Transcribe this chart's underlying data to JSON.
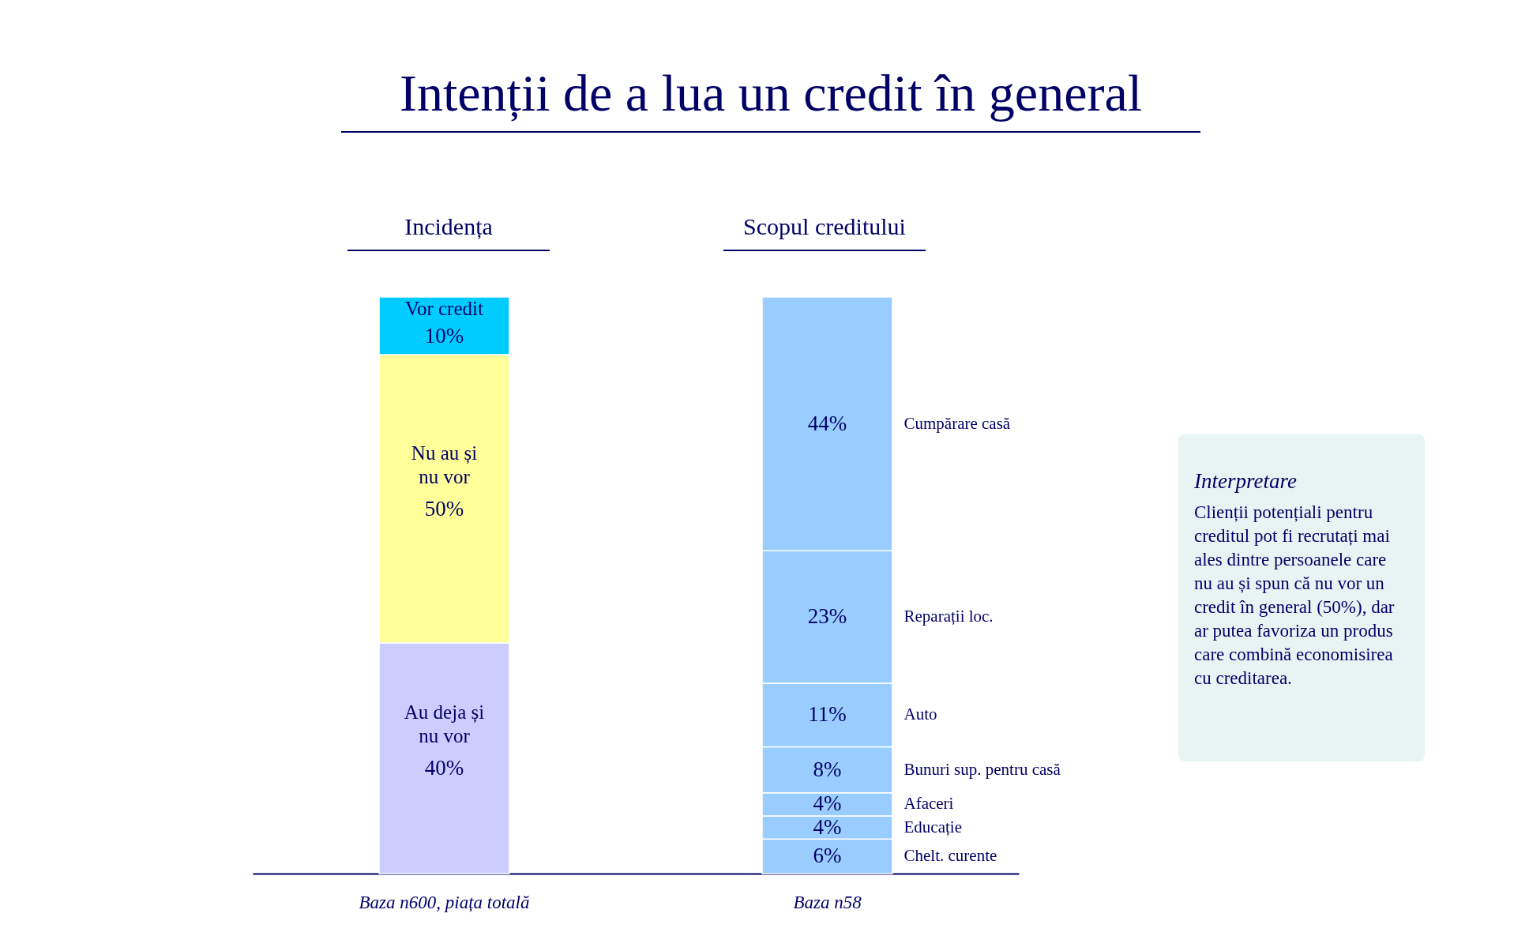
{
  "chart_data": {
    "type": "bar",
    "title": "Intenții de a lua un credit în general",
    "stacked": true,
    "legend": false,
    "categories": [
      "Baza n600, piața totală",
      "Baza n58"
    ],
    "series": [
      {
        "name": "Au deja și nu vor",
        "color": "#ccccff",
        "values": [
          40,
          null
        ],
        "value_labels": [
          "40%",
          null
        ]
      },
      {
        "name": "Nu au și nu vor",
        "color": "#ffff99",
        "values": [
          50,
          null
        ],
        "value_labels": [
          "50%",
          null
        ]
      },
      {
        "name": "Vor credit",
        "color": "#00ccff",
        "values": [
          10,
          null
        ],
        "value_labels": [
          "10%",
          null
        ]
      },
      {
        "name": "Chelt. curente",
        "color": "#99ccff",
        "values": [
          null,
          6
        ],
        "value_labels": [
          null,
          "6%"
        ]
      },
      {
        "name": "Educație",
        "color": "#99ccff",
        "values": [
          null,
          4
        ],
        "value_labels": [
          null,
          "4%"
        ]
      },
      {
        "name": "Afaceri",
        "color": "#99ccff",
        "values": [
          null,
          4
        ],
        "value_labels": [
          null,
          "4%"
        ]
      },
      {
        "name": "Bunuri sup. pentru casă",
        "color": "#99ccff",
        "values": [
          null,
          8
        ],
        "value_labels": [
          null,
          "8%"
        ]
      },
      {
        "name": "Auto",
        "color": "#99ccff",
        "values": [
          null,
          11
        ],
        "value_labels": [
          null,
          "11%"
        ]
      },
      {
        "name": "Reparații loc.",
        "color": "#99ccff",
        "values": [
          null,
          23
        ],
        "value_labels": [
          null,
          "23%"
        ]
      },
      {
        "name": "Cumpărare casă",
        "color": "#99ccff",
        "values": [
          null,
          44
        ],
        "value_labels": [
          null,
          "44%"
        ]
      }
    ],
    "annotations": [
      "Incidența",
      "Scopul creditului",
      "Interpretare",
      "Clienții potențiali pentru creditul pot fi recrutați mai ales dintre persoanele care nu au și spun că nu vor un credit în general (50%), dar ar putea favoriza un produs care combină economisirea cu creditarea."
    ]
  }
}
